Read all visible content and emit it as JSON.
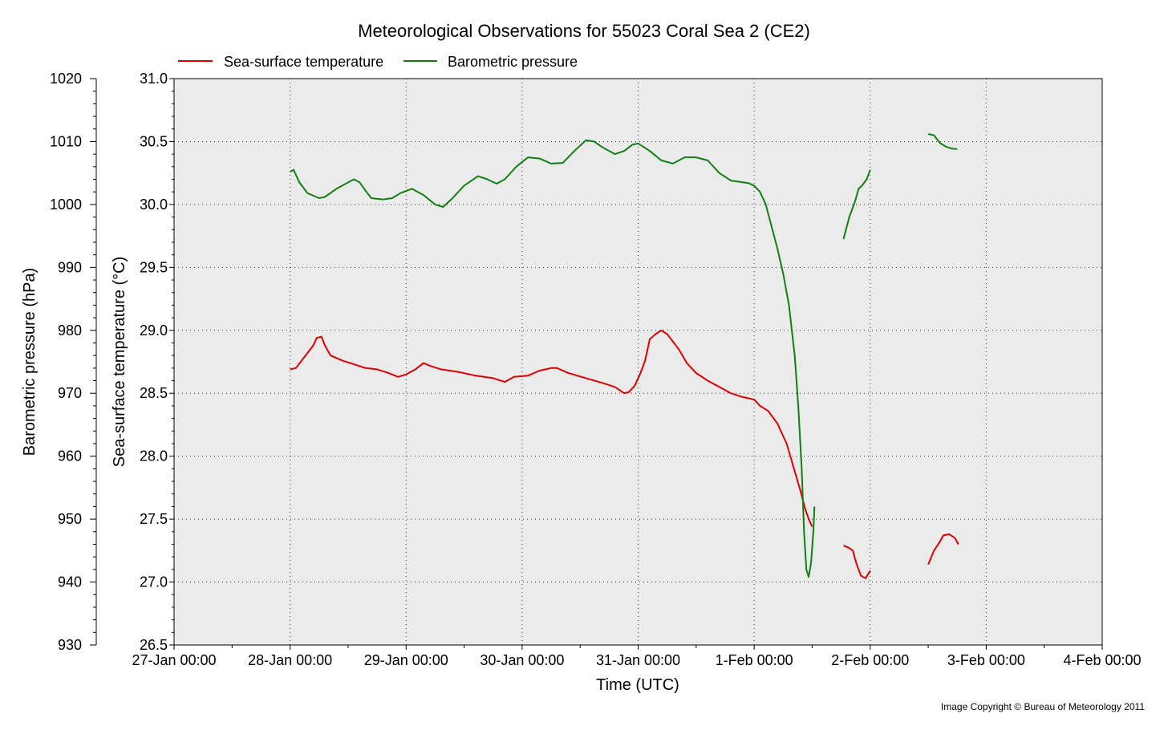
{
  "colors": {
    "title": "#0000c0",
    "sst": "#e00000",
    "pressure": "#108010",
    "plot_bg": "#ebebeb",
    "grid": "#333333"
  },
  "chart_data": {
    "type": "line",
    "title": "Meteorological Observations for 55023 Coral Sea 2 (CE2)",
    "xlabel": "Time (UTC)",
    "y_left_outer_label": "Barometric pressure (hPa)",
    "y_left_inner_label": "Sea-surface temperature (°C)",
    "x_ticks": [
      "27-Jan 00:00",
      "28-Jan 00:00",
      "29-Jan 00:00",
      "30-Jan 00:00",
      "31-Jan 00:00",
      "1-Feb 00:00",
      "2-Feb 00:00",
      "3-Feb 00:00",
      "4-Feb 00:00"
    ],
    "xlim": [
      0,
      8
    ],
    "sst_ticks": [
      "26.5",
      "27.0",
      "27.5",
      "28.0",
      "28.5",
      "29.0",
      "29.5",
      "30.0",
      "30.5",
      "31.0"
    ],
    "sst_lim": [
      26.5,
      31.0
    ],
    "pressure_ticks": [
      "930",
      "940",
      "950",
      "960",
      "970",
      "980",
      "990",
      "1000",
      "1010",
      "1020"
    ],
    "pressure_lim": [
      930,
      1020
    ],
    "grid": true,
    "legend_placement": "top-left",
    "copyright": "Image Copyright © Bureau of Meteorology 2011",
    "series": [
      {
        "name": "Sea-surface temperature",
        "axis": "sst",
        "segments": [
          [
            [
              1.0,
              28.69
            ],
            [
              1.05,
              28.7
            ],
            [
              1.1,
              28.76
            ],
            [
              1.15,
              28.82
            ],
            [
              1.2,
              28.88
            ],
            [
              1.23,
              28.94
            ],
            [
              1.27,
              28.95
            ],
            [
              1.3,
              28.88
            ],
            [
              1.35,
              28.8
            ],
            [
              1.45,
              28.76
            ],
            [
              1.55,
              28.73
            ],
            [
              1.65,
              28.7
            ],
            [
              1.75,
              28.69
            ],
            [
              1.85,
              28.66
            ],
            [
              1.93,
              28.63
            ],
            [
              2.0,
              28.65
            ],
            [
              2.08,
              28.69
            ],
            [
              2.15,
              28.74
            ],
            [
              2.2,
              28.72
            ],
            [
              2.3,
              28.69
            ],
            [
              2.45,
              28.67
            ],
            [
              2.6,
              28.64
            ],
            [
              2.75,
              28.62
            ],
            [
              2.85,
              28.59
            ],
            [
              2.93,
              28.63
            ],
            [
              3.05,
              28.64
            ],
            [
              3.15,
              28.68
            ],
            [
              3.25,
              28.7
            ],
            [
              3.3,
              28.7
            ],
            [
              3.4,
              28.66
            ],
            [
              3.55,
              28.62
            ],
            [
              3.7,
              28.58
            ],
            [
              3.8,
              28.55
            ],
            [
              3.88,
              28.5
            ],
            [
              3.92,
              28.51
            ],
            [
              3.97,
              28.56
            ],
            [
              4.02,
              28.66
            ],
            [
              4.06,
              28.76
            ],
            [
              4.1,
              28.93
            ],
            [
              4.15,
              28.97
            ],
            [
              4.2,
              29.0
            ],
            [
              4.25,
              28.97
            ],
            [
              4.3,
              28.91
            ],
            [
              4.35,
              28.85
            ],
            [
              4.42,
              28.74
            ],
            [
              4.5,
              28.66
            ],
            [
              4.6,
              28.6
            ],
            [
              4.7,
              28.55
            ],
            [
              4.8,
              28.5
            ],
            [
              4.9,
              28.47
            ],
            [
              5.0,
              28.45
            ],
            [
              5.05,
              28.4
            ],
            [
              5.12,
              28.36
            ],
            [
              5.2,
              28.26
            ],
            [
              5.28,
              28.1
            ],
            [
              5.35,
              27.88
            ],
            [
              5.4,
              27.72
            ],
            [
              5.44,
              27.58
            ],
            [
              5.47,
              27.5
            ],
            [
              5.5,
              27.44
            ]
          ],
          [
            [
              5.77,
              27.29
            ],
            [
              5.82,
              27.27
            ],
            [
              5.85,
              27.25
            ],
            [
              5.88,
              27.15
            ],
            [
              5.92,
              27.05
            ],
            [
              5.96,
              27.03
            ],
            [
              6.0,
              27.09
            ]
          ],
          [
            [
              6.5,
              27.14
            ],
            [
              6.55,
              27.25
            ],
            [
              6.6,
              27.32
            ],
            [
              6.63,
              27.37
            ],
            [
              6.68,
              27.38
            ],
            [
              6.73,
              27.35
            ],
            [
              6.76,
              27.3
            ]
          ]
        ]
      },
      {
        "name": "Barometric pressure",
        "axis": "pressure",
        "segments": [
          [
            [
              1.0,
              1005.2
            ],
            [
              1.03,
              1005.5
            ],
            [
              1.08,
              1003.5
            ],
            [
              1.15,
              1001.8
            ],
            [
              1.25,
              1001.0
            ],
            [
              1.3,
              1001.2
            ],
            [
              1.4,
              1002.5
            ],
            [
              1.5,
              1003.5
            ],
            [
              1.55,
              1004.0
            ],
            [
              1.6,
              1003.5
            ],
            [
              1.65,
              1002.2
            ],
            [
              1.7,
              1001.0
            ],
            [
              1.8,
              1000.8
            ],
            [
              1.88,
              1001.0
            ],
            [
              1.95,
              1001.8
            ],
            [
              2.05,
              1002.5
            ],
            [
              2.15,
              1001.5
            ],
            [
              2.25,
              1000.0
            ],
            [
              2.32,
              999.6
            ],
            [
              2.4,
              1001.0
            ],
            [
              2.5,
              1003.0
            ],
            [
              2.62,
              1004.5
            ],
            [
              2.7,
              1004.0
            ],
            [
              2.78,
              1003.3
            ],
            [
              2.85,
              1004.0
            ],
            [
              2.95,
              1006.0
            ],
            [
              3.05,
              1007.5
            ],
            [
              3.15,
              1007.3
            ],
            [
              3.25,
              1006.5
            ],
            [
              3.35,
              1006.6
            ],
            [
              3.45,
              1008.5
            ],
            [
              3.55,
              1010.2
            ],
            [
              3.62,
              1010.0
            ],
            [
              3.7,
              1009.0
            ],
            [
              3.8,
              1008.0
            ],
            [
              3.88,
              1008.5
            ],
            [
              3.95,
              1009.5
            ],
            [
              4.0,
              1009.7
            ],
            [
              4.1,
              1008.5
            ],
            [
              4.2,
              1007.0
            ],
            [
              4.3,
              1006.5
            ],
            [
              4.4,
              1007.5
            ],
            [
              4.5,
              1007.5
            ],
            [
              4.6,
              1007.0
            ],
            [
              4.7,
              1005.0
            ],
            [
              4.8,
              1003.8
            ],
            [
              4.95,
              1003.4
            ],
            [
              5.0,
              1003.0
            ],
            [
              5.05,
              1002.0
            ],
            [
              5.1,
              1000.0
            ],
            [
              5.15,
              996.5
            ],
            [
              5.2,
              993.0
            ],
            [
              5.25,
              989.0
            ],
            [
              5.3,
              984.0
            ],
            [
              5.35,
              976.0
            ],
            [
              5.38,
              968.0
            ],
            [
              5.41,
              958.0
            ],
            [
              5.43,
              948.0
            ],
            [
              5.45,
              942.0
            ],
            [
              5.47,
              940.8
            ],
            [
              5.49,
              943.0
            ],
            [
              5.51,
              948.0
            ],
            [
              5.52,
              952.0
            ]
          ],
          [
            [
              5.77,
              994.5
            ],
            [
              5.82,
              998.0
            ],
            [
              5.87,
              1000.5
            ],
            [
              5.9,
              1002.5
            ],
            [
              5.93,
              1003.0
            ],
            [
              5.97,
              1004.0
            ],
            [
              6.0,
              1005.5
            ]
          ],
          [
            [
              6.5,
              1011.2
            ],
            [
              6.55,
              1011.0
            ],
            [
              6.6,
              1009.8
            ],
            [
              6.65,
              1009.2
            ],
            [
              6.7,
              1008.9
            ],
            [
              6.75,
              1008.8
            ]
          ]
        ]
      }
    ]
  }
}
